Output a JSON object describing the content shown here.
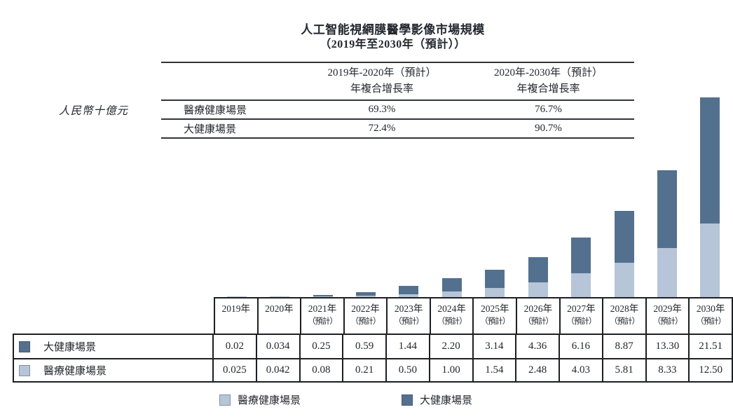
{
  "title": {
    "line1": "人工智能視網膜醫學影像市場規模",
    "line2": "（2019年至2030年（預計））"
  },
  "unit_label": "人民幣十億元",
  "colors": {
    "dark_blue": "#54708f",
    "light_blue": "#b6c5d8",
    "border": "#1c1f23"
  },
  "cagr_table": {
    "col_headers": [
      {
        "line1": "2019年-2020年（預計）",
        "line2": "年複合增長率"
      },
      {
        "line1": "2020年-2030年（預計）",
        "line2": "年複合增長率"
      }
    ],
    "rows": [
      {
        "label": "醫療健康場景",
        "values": [
          "69.3%",
          "76.7%"
        ]
      },
      {
        "label": "大健康場景",
        "values": [
          "72.4%",
          "90.7%"
        ]
      }
    ]
  },
  "chart_data": {
    "type": "bar",
    "stacked": true,
    "title": "人工智能視網膜醫學影像市場規模（2019年至2030年（預計））",
    "ylabel": "人民幣十億元",
    "ylim": [
      0,
      35
    ],
    "grid": false,
    "legend_position": "bottom",
    "categories": [
      "2019年",
      "2020年",
      "2021年（預計）",
      "2022年（預計）",
      "2023年（預計）",
      "2024年（預計）",
      "2025年（預計）",
      "2026年（預計）",
      "2027年（預計）",
      "2028年（預計）",
      "2029年（預計）",
      "2030年（預計）"
    ],
    "series": [
      {
        "name": "醫療健康場景",
        "color": "#b6c5d8",
        "stack_position": "bottom",
        "values": [
          0.025,
          0.042,
          0.08,
          0.21,
          0.5,
          1.0,
          1.54,
          2.48,
          4.03,
          5.81,
          8.33,
          12.5
        ]
      },
      {
        "name": "大健康場景",
        "color": "#54708f",
        "stack_position": "top",
        "values": [
          0.02,
          0.034,
          0.25,
          0.59,
          1.44,
          2.2,
          3.14,
          4.36,
          6.16,
          8.87,
          13.3,
          21.51
        ]
      }
    ]
  },
  "data_table": {
    "year_headers": [
      {
        "year": "2019年",
        "note": ""
      },
      {
        "year": "2020年",
        "note": ""
      },
      {
        "year": "2021年",
        "note": "（預計）"
      },
      {
        "year": "2022年",
        "note": "（預計）"
      },
      {
        "year": "2023年",
        "note": "（預計）"
      },
      {
        "year": "2024年",
        "note": "（預計）"
      },
      {
        "year": "2025年",
        "note": "（預計）"
      },
      {
        "year": "2026年",
        "note": "（預計）"
      },
      {
        "year": "2027年",
        "note": "（預計）"
      },
      {
        "year": "2028年",
        "note": "（預計）"
      },
      {
        "year": "2029年",
        "note": "（預計）"
      },
      {
        "year": "2030年",
        "note": "（預計）"
      }
    ],
    "rows": [
      {
        "label": "大健康場景",
        "swatch_color": "#54708f",
        "values": [
          "0.02",
          "0.034",
          "0.25",
          "0.59",
          "1.44",
          "2.20",
          "3.14",
          "4.36",
          "6.16",
          "8.87",
          "13.30",
          "21.51"
        ]
      },
      {
        "label": "醫療健康場景",
        "swatch_color": "#b6c5d8",
        "values": [
          "0.025",
          "0.042",
          "0.08",
          "0.21",
          "0.50",
          "1.00",
          "1.54",
          "2.48",
          "4.03",
          "5.81",
          "8.33",
          "12.50"
        ]
      }
    ]
  },
  "legend": [
    {
      "label": "醫療健康場景",
      "color": "#b6c5d8"
    },
    {
      "label": "大健康場景",
      "color": "#54708f"
    }
  ]
}
